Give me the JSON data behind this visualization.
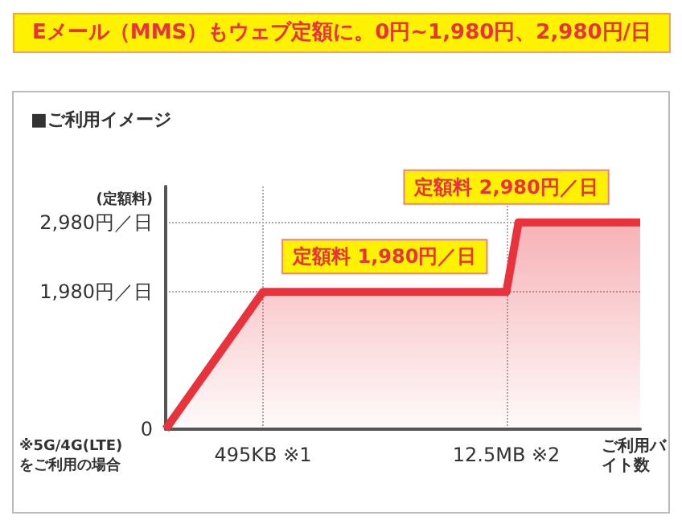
{
  "chart_data": {
    "type": "area",
    "title": "Eメール（MMS）もウェブ定額に。0円~1,980円、2,980円/日",
    "subtitle": "■ご利用イメージ",
    "ylabel": "(定額料)",
    "xlabel": "ご利用バイト数",
    "categories": [
      null,
      null,
      null,
      null,
      null,
      null,
      null,
      null,
      "495KB ※1",
      null,
      null,
      null,
      null,
      null,
      null,
      null,
      null,
      null,
      null,
      null,
      null,
      null,
      null,
      null,
      null,
      null,
      null,
      null,
      "12.5MB ※2",
      null,
      null,
      null,
      null,
      null,
      null,
      null,
      null,
      null,
      null,
      null
    ],
    "series": [
      {
        "color": "#e8323c",
        "values": [
          0,
          null,
          null,
          null,
          null,
          null,
          null,
          null,
          1980,
          1980,
          1980,
          1980,
          1980,
          1980,
          1980,
          1980,
          1980,
          1980,
          1980,
          1980,
          1980,
          1980,
          1980,
          1980,
          1980,
          1980,
          1980,
          1980,
          1980,
          2980,
          2980,
          2980,
          2980,
          2980,
          2980,
          2980,
          2980,
          2980,
          2980,
          2980
        ]
      }
    ],
    "ylim": [
      0,
      3500
    ],
    "yticks": [
      0,
      {
        "value": 1980,
        "label": "1,980円／日"
      },
      {
        "value": 2980,
        "label": "2,980円／日"
      }
    ],
    "grid": true,
    "marker": "none",
    "line_style": "solid",
    "annotations": [
      {
        "text": "定額料 1,980円／日",
        "y": 1980
      },
      {
        "text": "定額料 2,980円／日",
        "x": "12.5MB ※2",
        "y": 2980
      },
      "※5G/4G(LTE)\nをご利用の場合"
    ]
  }
}
